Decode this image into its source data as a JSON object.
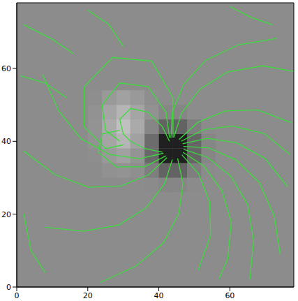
{
  "chart_data": {
    "type": "streamline",
    "xlim": [
      0,
      78
    ],
    "ylim": [
      0,
      78
    ],
    "xticks": [
      0,
      20,
      40,
      60
    ],
    "yticks": [
      0,
      20,
      40,
      60
    ],
    "color": "#3ddc3d",
    "heatmap": {
      "x": [
        22,
        26,
        30,
        34,
        38,
        42,
        46,
        50,
        54
      ],
      "y": [
        28,
        32,
        36,
        40,
        44,
        48,
        52
      ],
      "values": [
        [
          0,
          0,
          0,
          0,
          -0.01,
          -0.04,
          -0.04,
          -0.01,
          0
        ],
        [
          0,
          0.04,
          0.06,
          0.03,
          -0.1,
          -0.29,
          -0.29,
          -0.1,
          -0.01
        ],
        [
          0.02,
          0.11,
          0.18,
          0.07,
          -0.26,
          -0.77,
          -0.77,
          -0.28,
          -0.04
        ],
        [
          0.05,
          0.22,
          0.36,
          0.18,
          -0.23,
          -0.77,
          -0.77,
          -0.28,
          -0.04
        ],
        [
          0.06,
          0.27,
          0.45,
          0.26,
          -0.04,
          -0.29,
          -0.29,
          -0.1,
          -0.01
        ],
        [
          0.05,
          0.22,
          0.36,
          0.22,
          0.05,
          -0.04,
          -0.04,
          0,
          0
        ],
        [
          0.02,
          0.11,
          0.18,
          0.11,
          0.02,
          0,
          0,
          0,
          0
        ]
      ],
      "color_range": [
        -1,
        1
      ]
    },
    "streamlines": [
      [
        [
          47.0,
          37.8
        ],
        [
          53.7,
          35.6
        ],
        [
          60.3,
          30.4
        ],
        [
          65.0,
          22.7
        ],
        [
          66.7,
          12.7
        ],
        [
          65.6,
          2.0
        ]
      ],
      [
        [
          46.7,
          39.3
        ],
        [
          53.6,
          40.8
        ],
        [
          61.9,
          39.6
        ],
        [
          69.9,
          35.3
        ],
        [
          76.3,
          27.5
        ]
      ],
      [
        [
          45.7,
          40.5
        ],
        [
          51.0,
          45.2
        ],
        [
          58.7,
          48.3
        ],
        [
          67.8,
          48.6
        ],
        [
          77.3,
          45.1
        ]
      ],
      [
        [
          44.2,
          41.0
        ],
        [
          46.4,
          47.7
        ],
        [
          51.6,
          54.3
        ],
        [
          59.3,
          59.0
        ],
        [
          69.3,
          60.7
        ],
        [
          77.9,
          59.2
        ]
      ],
      [
        [
          43.4,
          40.9
        ],
        [
          43.8,
          48.0
        ],
        [
          47.1,
          55.7
        ],
        [
          53.3,
          62.3
        ],
        [
          62.5,
          66.5
        ],
        [
          73.2,
          68.2
        ]
      ],
      [
        [
          41.3,
          36.7
        ],
        [
          34.4,
          35.2
        ],
        [
          26.1,
          36.4
        ],
        [
          18.1,
          40.7
        ],
        [
          11.7,
          48.5
        ],
        [
          7.3,
          58.4
        ]
      ],
      [
        [
          42.3,
          35.5
        ],
        [
          37.1,
          30.8
        ],
        [
          29.3,
          27.7
        ],
        [
          20.2,
          27.4
        ],
        [
          10.7,
          30.9
        ],
        [
          2.0,
          37.3
        ]
      ],
      [
        [
          43.8,
          35.0
        ],
        [
          41.6,
          28.3
        ],
        [
          36.4,
          21.7
        ],
        [
          28.7,
          17.0
        ],
        [
          18.7,
          15.3
        ],
        [
          8.0,
          16.4
        ]
      ],
      [
        [
          45.3,
          35.3
        ],
        [
          46.8,
          28.4
        ],
        [
          45.6,
          20.1
        ],
        [
          41.3,
          12.1
        ],
        [
          33.5,
          5.7
        ],
        [
          23.6,
          1.3
        ]
      ],
      [
        [
          46.5,
          36.3
        ],
        [
          51.2,
          31.1
        ],
        [
          54.3,
          23.3
        ],
        [
          54.6,
          14.2
        ],
        [
          51.1,
          4.7
        ]
      ],
      [
        [
          46.8,
          37.0
        ],
        [
          52.7,
          33.2
        ],
        [
          57.8,
          26.4
        ],
        [
          60.4,
          17.8
        ],
        [
          59.4,
          7.7
        ],
        [
          57.0,
          2.3
        ]
      ],
      [
        [
          46.9,
          38.6
        ],
        [
          54.0,
          38.2
        ],
        [
          61.7,
          34.9
        ],
        [
          68.3,
          28.7
        ],
        [
          72.5,
          19.5
        ],
        [
          74.2,
          8.8
        ]
      ],
      [
        [
          46.3,
          40.0
        ],
        [
          52.6,
          43.2
        ],
        [
          60.9,
          44.2
        ],
        [
          69.7,
          42.1
        ],
        [
          77.0,
          36.3
        ]
      ],
      [
        [
          43,
          40
        ],
        [
          41,
          44
        ],
        [
          37,
          48
        ],
        [
          32,
          49
        ],
        [
          29,
          46
        ],
        [
          30,
          42
        ]
      ],
      [
        [
          43,
          41
        ],
        [
          42,
          48
        ],
        [
          37,
          55
        ],
        [
          29,
          56
        ],
        [
          24,
          50
        ],
        [
          25,
          43
        ],
        [
          29,
          40
        ]
      ],
      [
        [
          44,
          41
        ],
        [
          44,
          52
        ],
        [
          38,
          62
        ],
        [
          27,
          63
        ],
        [
          19,
          55
        ],
        [
          19,
          44
        ],
        [
          25,
          38
        ],
        [
          30,
          39
        ]
      ],
      [
        [
          41,
          37
        ],
        [
          36,
          38
        ],
        [
          32,
          40
        ],
        [
          30,
          42
        ]
      ],
      [
        [
          42,
          36
        ],
        [
          36,
          33
        ],
        [
          28,
          33
        ],
        [
          23,
          37
        ],
        [
          24,
          42
        ],
        [
          29,
          43
        ]
      ],
      [
        [
          2,
          72
        ],
        [
          10,
          68
        ],
        [
          16,
          64
        ]
      ],
      [
        [
          1,
          58
        ],
        [
          8,
          56
        ],
        [
          14,
          52
        ]
      ],
      [
        [
          2,
          20
        ],
        [
          4,
          10
        ],
        [
          8,
          4
        ]
      ],
      [
        [
          60,
          77
        ],
        [
          66,
          74
        ],
        [
          72,
          72
        ]
      ],
      [
        [
          20,
          76
        ],
        [
          26,
          72
        ],
        [
          30,
          66
        ]
      ]
    ]
  }
}
